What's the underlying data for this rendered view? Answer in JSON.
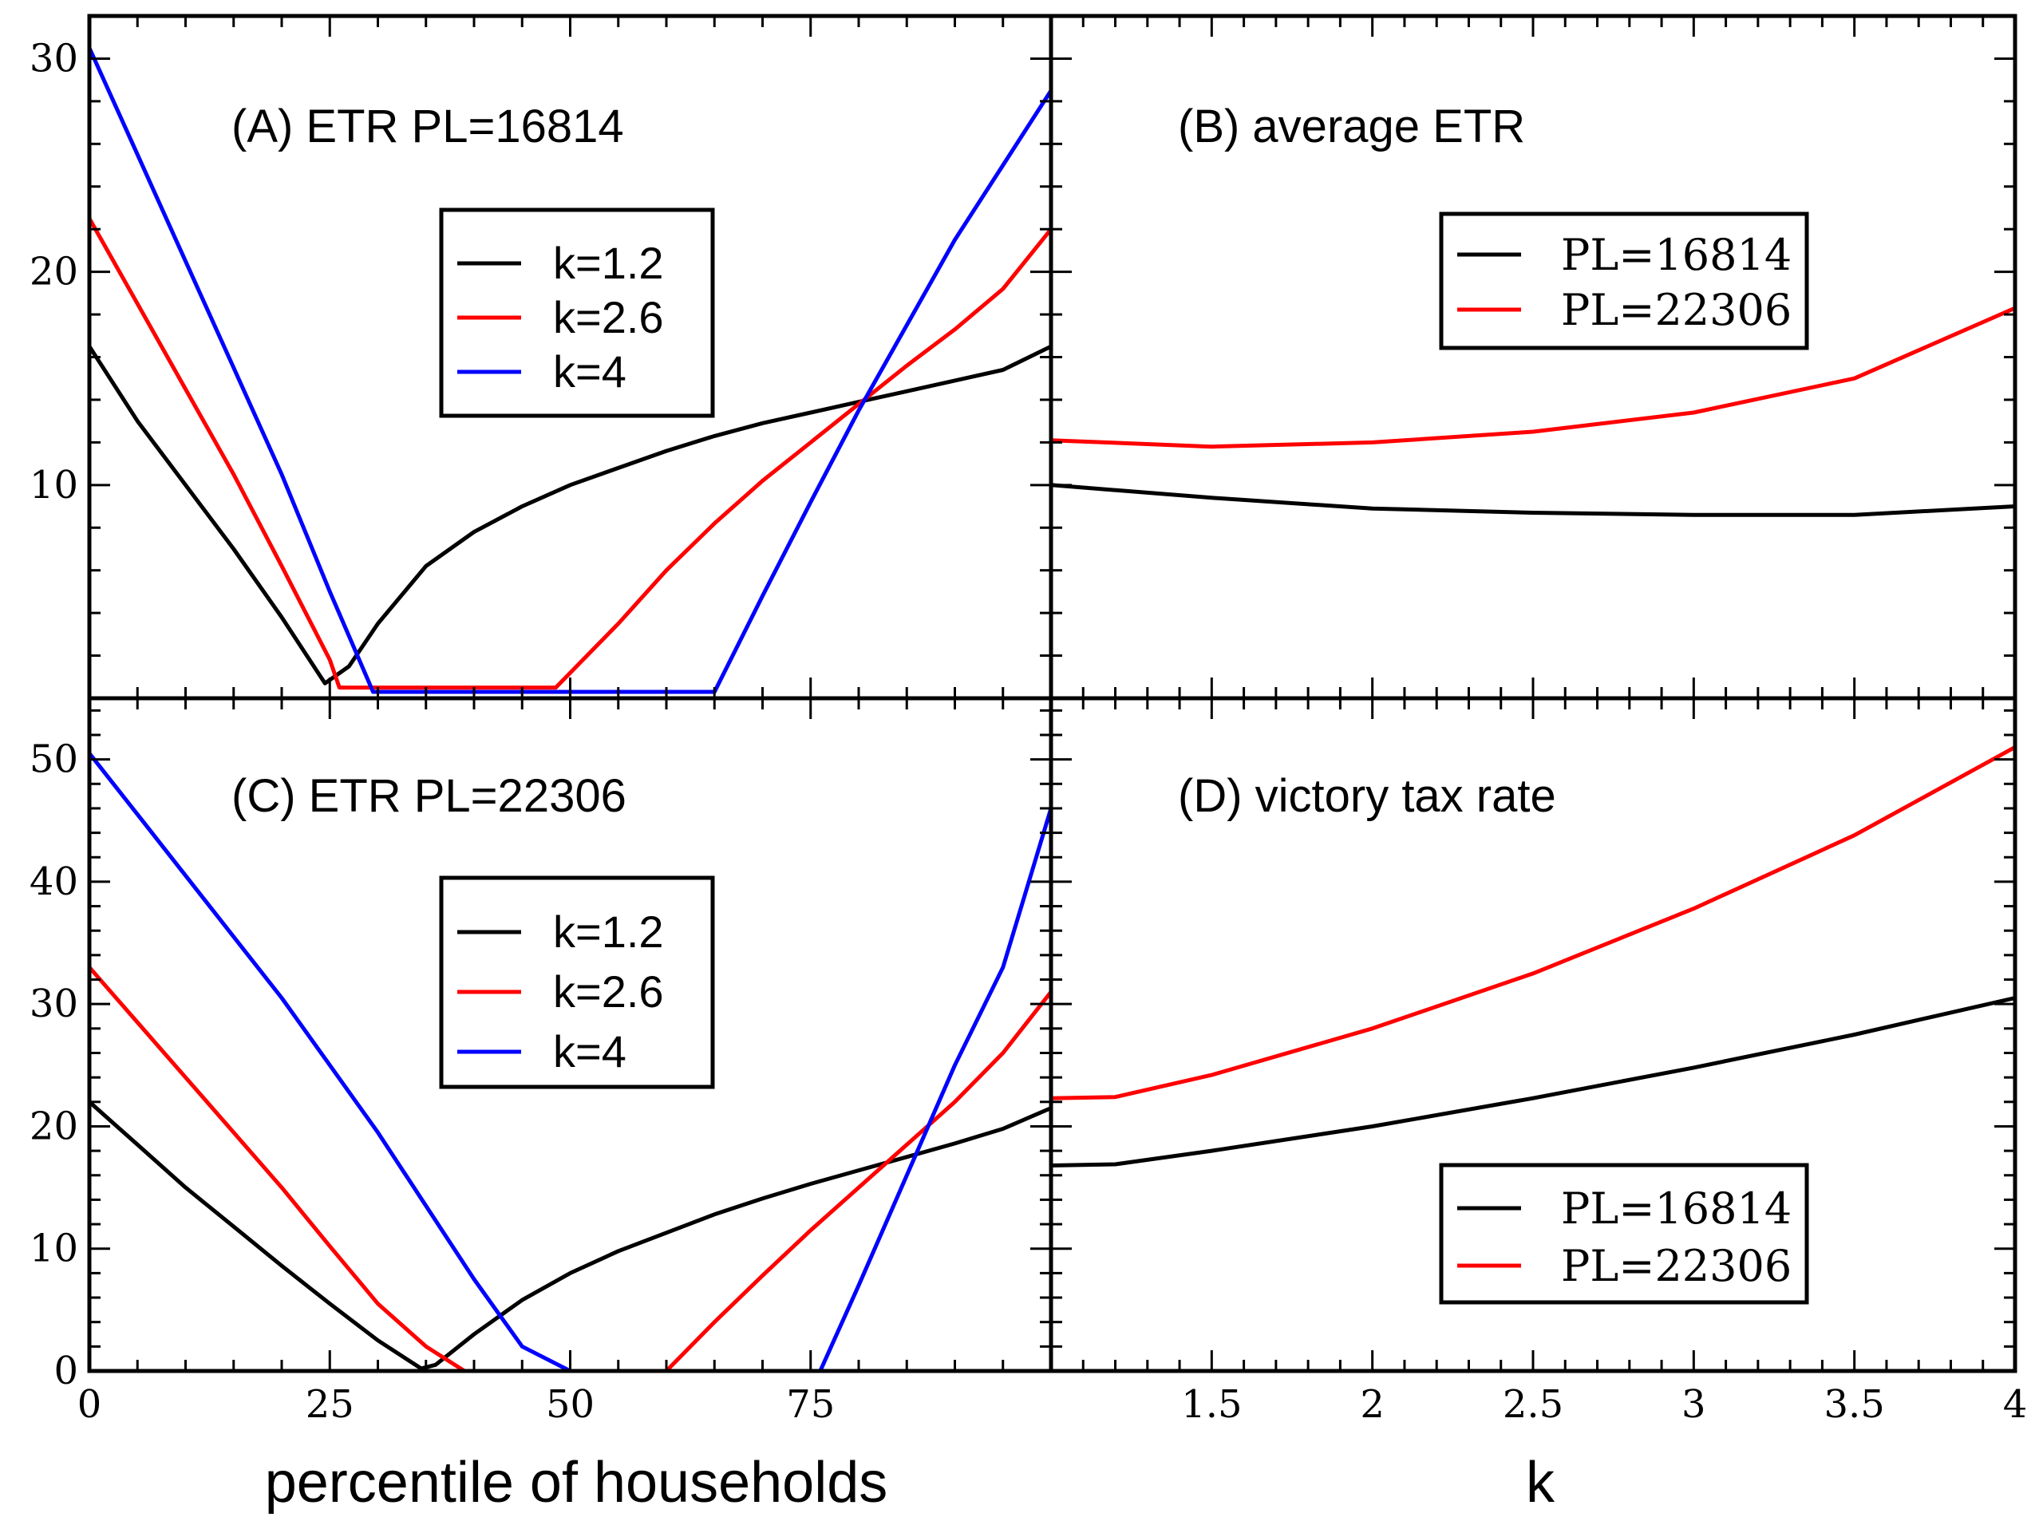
{
  "figure": {
    "xlabel_left": "percentile of households",
    "xlabel_right": "k"
  },
  "chart_data": [
    {
      "id": "A",
      "type": "line",
      "title": "(A) ETR  PL=16814",
      "xlabel": "",
      "ylabel": "",
      "xlim": [
        0,
        100
      ],
      "ylim": [
        0,
        32
      ],
      "yticks": [
        10,
        20,
        30
      ],
      "ytick_labels": [
        "10",
        "20",
        "30"
      ],
      "xticks": [],
      "xtick_labels": [],
      "legend_style": "sans",
      "legend_position": "center",
      "series": [
        {
          "name": "k=1.2",
          "color": "#000000",
          "x": [
            0,
            5,
            10,
            15,
            20,
            24.5,
            27,
            30,
            35,
            40,
            45,
            50,
            55,
            60,
            65,
            70,
            75,
            80,
            85,
            90,
            95,
            100
          ],
          "y": [
            16.5,
            13,
            10,
            7,
            3.8,
            0.7,
            1.5,
            3.5,
            6.2,
            7.8,
            9,
            10,
            10.8,
            11.6,
            12.3,
            12.9,
            13.4,
            13.9,
            14.4,
            14.9,
            15.4,
            16.5
          ]
        },
        {
          "name": "k=2.6",
          "color": "#ff0000",
          "x": [
            0,
            5,
            10,
            15,
            20,
            25,
            26,
            48.5,
            55,
            60,
            65,
            70,
            75,
            80,
            85,
            90,
            95,
            100
          ],
          "y": [
            22.5,
            18.5,
            14.5,
            10.5,
            6.2,
            1.8,
            0.5,
            0.5,
            3.5,
            6,
            8.2,
            10.2,
            12,
            13.8,
            15.6,
            17.3,
            19.2,
            22
          ]
        },
        {
          "name": "k=4",
          "color": "#0000ff",
          "x": [
            0,
            5,
            10,
            15,
            20,
            25,
            29.5,
            65,
            70,
            75,
            80,
            85,
            90,
            95,
            100
          ],
          "y": [
            30.5,
            25.5,
            20.5,
            15.5,
            10.5,
            5,
            0.3,
            0.3,
            4.8,
            9.2,
            13.5,
            17.5,
            21.5,
            25,
            28.5
          ]
        }
      ]
    },
    {
      "id": "B",
      "type": "line",
      "title": "(B) average ETR",
      "xlabel": "",
      "ylabel": "",
      "xlim": [
        1,
        4
      ],
      "ylim": [
        0,
        32
      ],
      "yticks": [],
      "ytick_labels": [],
      "xticks": [],
      "xtick_labels": [],
      "legend_style": "serif",
      "legend_position": "center",
      "series": [
        {
          "name": "PL=16814",
          "color": "#000000",
          "x": [
            1.0,
            1.5,
            2.0,
            2.5,
            3.0,
            3.5,
            4.0
          ],
          "y": [
            10.0,
            9.4,
            8.9,
            8.7,
            8.6,
            8.6,
            9.0
          ]
        },
        {
          "name": "PL=22306",
          "color": "#ff0000",
          "x": [
            1.0,
            1.5,
            2.0,
            2.5,
            3.0,
            3.5,
            4.0
          ],
          "y": [
            12.1,
            11.8,
            12.0,
            12.5,
            13.4,
            15.0,
            18.3
          ]
        }
      ]
    },
    {
      "id": "C",
      "type": "line",
      "title": "(C) ETR PL=22306",
      "xlabel": "percentile of households",
      "ylabel": "",
      "xlim": [
        0,
        100
      ],
      "ylim": [
        0,
        55
      ],
      "yticks": [
        0,
        10,
        20,
        30,
        40,
        50
      ],
      "ytick_labels": [
        "0",
        "10",
        "20",
        "30",
        "40",
        "50"
      ],
      "xticks": [
        0,
        25,
        50,
        75
      ],
      "xtick_labels": [
        "0",
        "25",
        "50",
        "75"
      ],
      "legend_style": "sans",
      "legend_position": "center",
      "series": [
        {
          "name": "k=1.2",
          "color": "#000000",
          "x": [
            0,
            5,
            10,
            15,
            20,
            25,
            30,
            34.5,
            36,
            40,
            45,
            50,
            55,
            60,
            65,
            70,
            75,
            80,
            85,
            90,
            95,
            100
          ],
          "y": [
            22,
            18.5,
            15,
            11.8,
            8.6,
            5.5,
            2.5,
            0.2,
            0.5,
            3,
            5.8,
            8,
            9.8,
            11.3,
            12.8,
            14.1,
            15.3,
            16.4,
            17.5,
            18.6,
            19.8,
            21.5
          ]
        },
        {
          "name": "k=2.6",
          "color": "#ff0000",
          "x": [
            0,
            5,
            10,
            15,
            20,
            25,
            30,
            35,
            39,
            60,
            65,
            70,
            75,
            80,
            85,
            90,
            95,
            100
          ],
          "y": [
            33,
            28.5,
            24,
            19.5,
            15,
            10.2,
            5.5,
            2,
            0,
            0,
            4,
            7.8,
            11.5,
            15,
            18.5,
            22,
            26,
            31
          ]
        },
        {
          "name": "k=4",
          "color": "#0000ff",
          "x": [
            0,
            5,
            10,
            15,
            20,
            25,
            30,
            35,
            40,
            45,
            50,
            76,
            80,
            85,
            90,
            95,
            100
          ],
          "y": [
            50.5,
            45.5,
            40.5,
            35.5,
            30.5,
            25,
            19.5,
            13.5,
            7.5,
            2,
            0,
            0,
            7,
            16,
            25,
            33,
            46
          ]
        }
      ]
    },
    {
      "id": "D",
      "type": "line",
      "title": "(D) victory tax rate",
      "xlabel": "k",
      "ylabel": "",
      "xlim": [
        1,
        4
      ],
      "ylim": [
        0,
        55
      ],
      "yticks": [],
      "ytick_labels": [],
      "xticks": [
        1.5,
        2,
        2.5,
        3,
        3.5,
        4
      ],
      "xtick_labels": [
        "1.5",
        "2",
        "2.5",
        "3",
        "3.5",
        "4"
      ],
      "legend_style": "serif",
      "legend_position": "bottom-right",
      "series": [
        {
          "name": "PL=16814",
          "color": "#000000",
          "x": [
            1.0,
            1.2,
            1.5,
            2.0,
            2.5,
            3.0,
            3.5,
            4.0
          ],
          "y": [
            16.8,
            16.9,
            18.0,
            20.0,
            22.3,
            24.8,
            27.5,
            30.5
          ]
        },
        {
          "name": "PL=22306",
          "color": "#ff0000",
          "x": [
            1.0,
            1.2,
            1.5,
            2.0,
            2.5,
            3.0,
            3.5,
            4.0
          ],
          "y": [
            22.3,
            22.4,
            24.2,
            28.0,
            32.5,
            37.8,
            43.8,
            51.0
          ]
        }
      ]
    }
  ]
}
